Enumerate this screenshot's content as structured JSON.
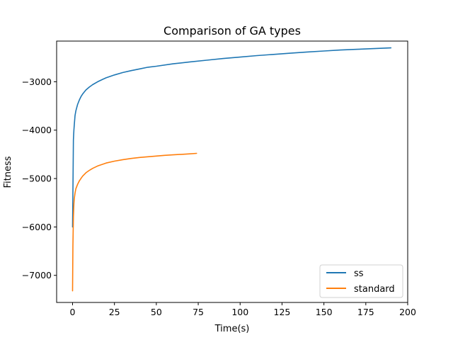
{
  "chart_data": {
    "type": "line",
    "title": "Comparison of GA types",
    "xlabel": "Time(s)",
    "ylabel": "Fitness",
    "xlim": [
      -9.5,
      200
    ],
    "ylim": [
      -7560,
      -2160
    ],
    "xticks": [
      0,
      25,
      50,
      75,
      100,
      125,
      150,
      175,
      200
    ],
    "xtick_labels": [
      "0",
      "25",
      "50",
      "75",
      "100",
      "125",
      "150",
      "175",
      "200"
    ],
    "yticks": [
      -7000,
      -6000,
      -5000,
      -4000,
      -3000
    ],
    "ytick_labels": [
      "−7000",
      "−6000",
      "−5000",
      "−4000",
      "−3000"
    ],
    "grid": false,
    "legend_position": "lower-right",
    "series": [
      {
        "name": "ss",
        "color": "#1f77b4",
        "x": [
          0,
          0.3,
          0.5,
          0.8,
          1,
          1.5,
          2,
          3,
          4,
          5,
          6,
          8,
          10,
          12,
          15,
          18,
          20,
          25,
          30,
          35,
          40,
          45,
          50,
          60,
          70,
          80,
          90,
          100,
          110,
          120,
          130,
          140,
          150,
          160,
          170,
          180,
          190
        ],
        "y": [
          -6000,
          -5000,
          -4200,
          -4000,
          -3900,
          -3700,
          -3600,
          -3470,
          -3380,
          -3310,
          -3255,
          -3170,
          -3110,
          -3060,
          -3000,
          -2950,
          -2920,
          -2860,
          -2810,
          -2770,
          -2735,
          -2700,
          -2680,
          -2630,
          -2590,
          -2555,
          -2520,
          -2490,
          -2460,
          -2435,
          -2410,
          -2385,
          -2365,
          -2345,
          -2330,
          -2315,
          -2300
        ]
      },
      {
        "name": "standard",
        "color": "#ff7f0e",
        "x": [
          0,
          0.2,
          0.5,
          0.8,
          1,
          1.5,
          2,
          3,
          4,
          5,
          6,
          8,
          10,
          12,
          15,
          18,
          20,
          25,
          30,
          35,
          40,
          45,
          50,
          55,
          60,
          65,
          70,
          74
        ],
        "y": [
          -7320,
          -6400,
          -5800,
          -5520,
          -5420,
          -5300,
          -5210,
          -5120,
          -5050,
          -5000,
          -4950,
          -4880,
          -4830,
          -4790,
          -4740,
          -4705,
          -4680,
          -4640,
          -4610,
          -4585,
          -4565,
          -4550,
          -4535,
          -4520,
          -4510,
          -4500,
          -4490,
          -4480
        ]
      }
    ]
  }
}
